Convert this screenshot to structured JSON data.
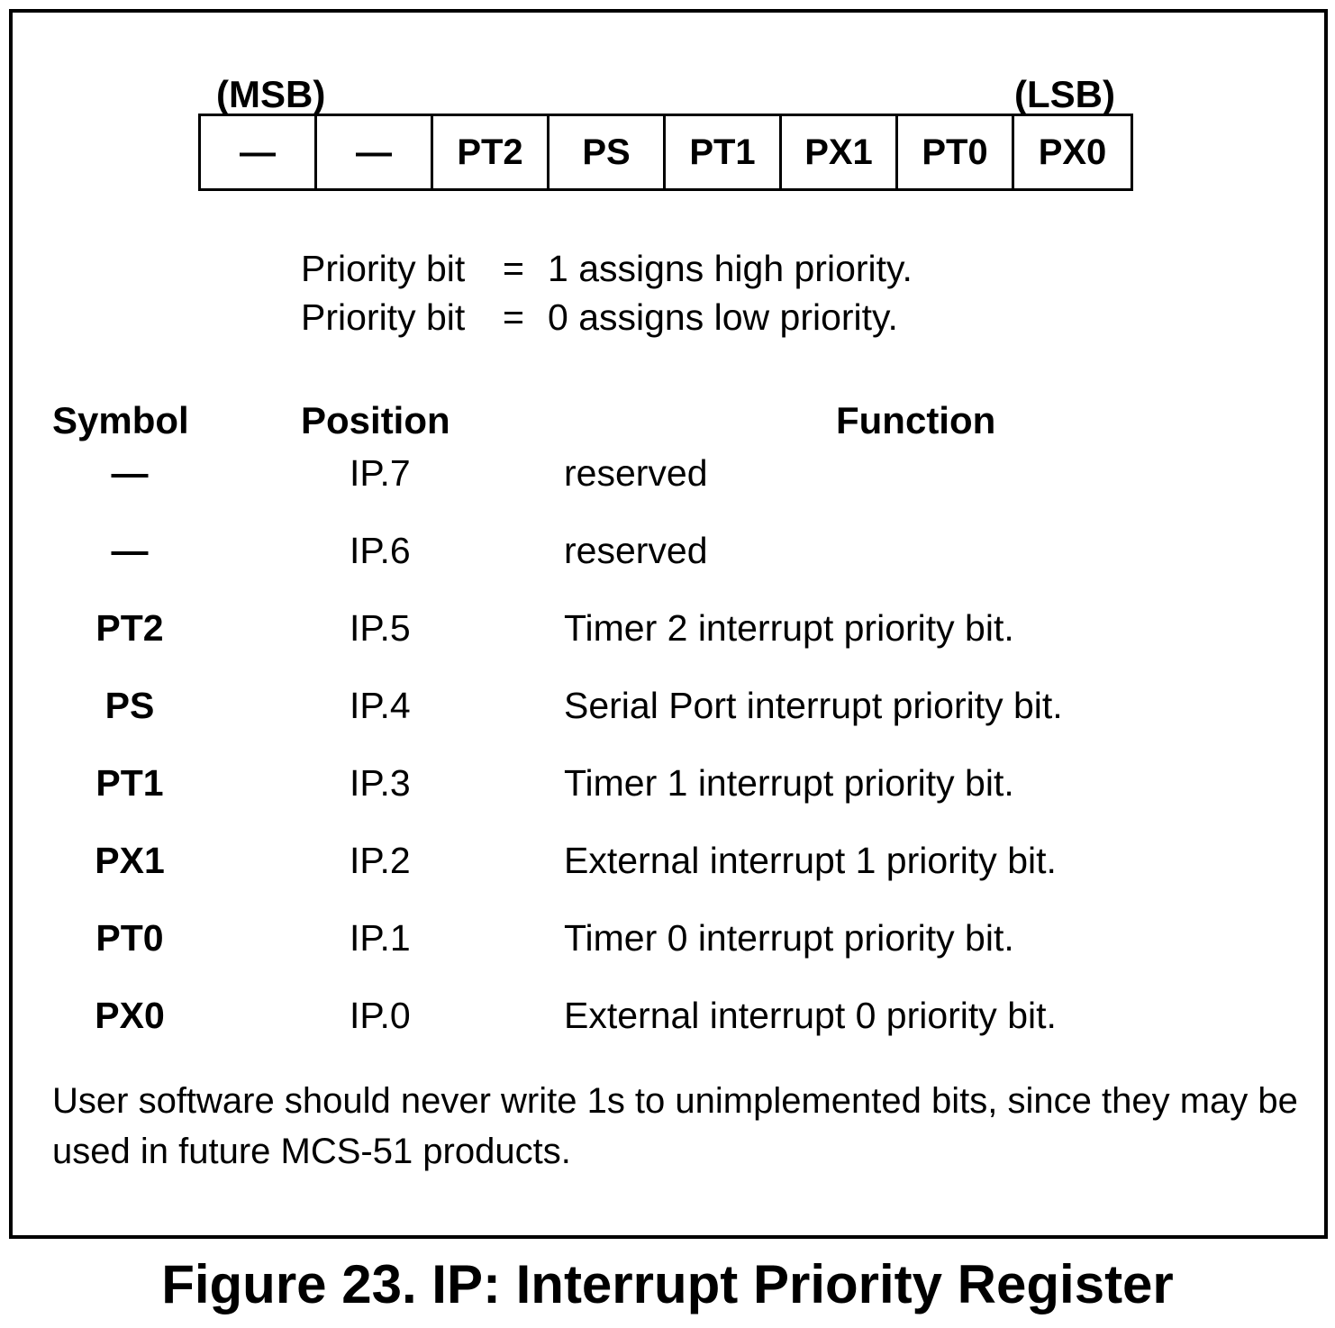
{
  "register": {
    "msb_label": "(MSB)",
    "lsb_label": "(LSB)",
    "bits": [
      "—",
      "—",
      "PT2",
      "PS",
      "PT1",
      "PX1",
      "PT0",
      "PX0"
    ]
  },
  "priority": {
    "line1_lhs": "Priority bit",
    "line1_eq": "=",
    "line1_rhs": "1 assigns high priority.",
    "line2_lhs": "Priority bit",
    "line2_eq": "=",
    "line2_rhs": "0 assigns low priority."
  },
  "table": {
    "headers": {
      "symbol": "Symbol",
      "position": "Position",
      "function": "Function"
    },
    "rows": [
      {
        "symbol": "—",
        "position": "IP.7",
        "function": "reserved"
      },
      {
        "symbol": "—",
        "position": "IP.6",
        "function": "reserved"
      },
      {
        "symbol": "PT2",
        "position": "IP.5",
        "function": "Timer 2 interrupt priority bit."
      },
      {
        "symbol": "PS",
        "position": "IP.4",
        "function": "Serial Port interrupt priority bit."
      },
      {
        "symbol": "PT1",
        "position": "IP.3",
        "function": "Timer 1 interrupt priority bit."
      },
      {
        "symbol": "PX1",
        "position": "IP.2",
        "function": "External interrupt 1 priority bit."
      },
      {
        "symbol": "PT0",
        "position": "IP.1",
        "function": "Timer 0 interrupt priority bit."
      },
      {
        "symbol": "PX0",
        "position": "IP.0",
        "function": "External interrupt 0 priority bit."
      }
    ]
  },
  "note": "User software should never write 1s to unimplemented bits, since they may be used in future MCS-51 products.",
  "caption": "Figure 23. IP: Interrupt Priority Register"
}
